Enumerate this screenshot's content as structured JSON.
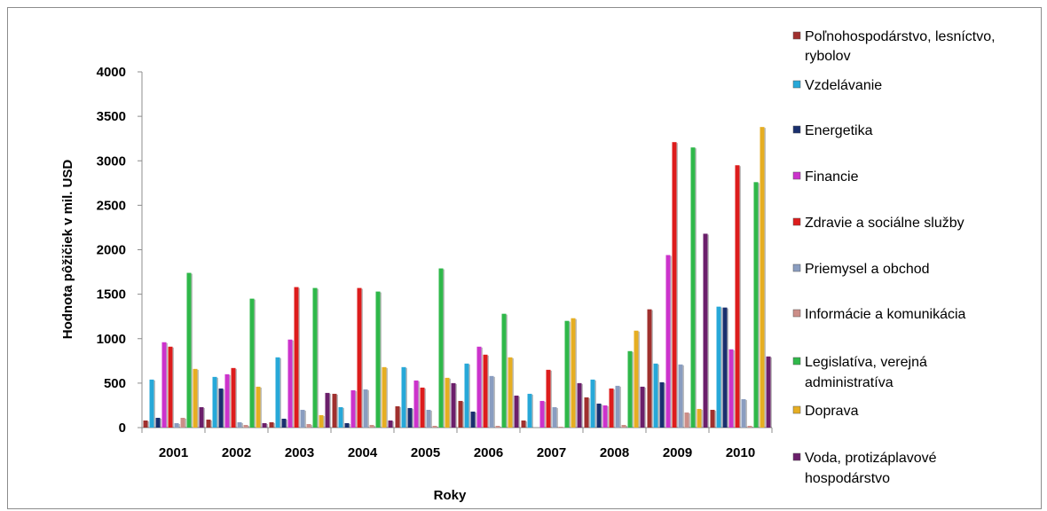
{
  "chart_data": {
    "type": "bar",
    "title": "",
    "xlabel": "Roky",
    "ylabel": "Hodnota pôžičiek v mil. USD",
    "ylim": [
      0,
      4000
    ],
    "yticks": [
      "0",
      "500",
      "1000",
      "1500",
      "2000",
      "2500",
      "3000",
      "3500",
      "4000"
    ],
    "grid": false,
    "legend_position": "right",
    "categories": [
      "2001",
      "2002",
      "2003",
      "2004",
      "2005",
      "2006",
      "2007",
      "2008",
      "2009",
      "2010"
    ],
    "series": [
      {
        "name": "Poľnohospodárstvo, lesníctvo, rybolov",
        "color": "#a0302e",
        "values": [
          80,
          90,
          60,
          380,
          240,
          300,
          80,
          340,
          1330,
          200
        ]
      },
      {
        "name": "Vzdelávanie",
        "color": "#27a8d8",
        "values": [
          540,
          570,
          790,
          230,
          680,
          720,
          380,
          540,
          720,
          1360
        ]
      },
      {
        "name": "Energetika",
        "color": "#1a2f6e",
        "values": [
          110,
          440,
          100,
          50,
          220,
          180,
          0,
          270,
          510,
          1350
        ]
      },
      {
        "name": "Financie",
        "color": "#cc33cc",
        "values": [
          960,
          600,
          990,
          420,
          530,
          910,
          300,
          250,
          1940,
          880
        ]
      },
      {
        "name": "Zdravie a sociálne služby",
        "color": "#dd1c1c",
        "values": [
          910,
          670,
          1580,
          1570,
          450,
          820,
          650,
          440,
          3210,
          2950
        ]
      },
      {
        "name": "Priemysel a obchod",
        "color": "#8a9dc0",
        "values": [
          50,
          60,
          200,
          430,
          200,
          580,
          230,
          470,
          710,
          320
        ]
      },
      {
        "name": "Informácie a komunikácia",
        "color": "#cc8e88",
        "values": [
          110,
          30,
          40,
          30,
          20,
          20,
          10,
          30,
          170,
          20
        ]
      },
      {
        "name": "Legislatíva, verejná administratíva",
        "color": "#2fb84a",
        "values": [
          1740,
          1450,
          1570,
          1530,
          1790,
          1280,
          1200,
          860,
          3150,
          2760
        ]
      },
      {
        "name": "Doprava",
        "color": "#e6ae22",
        "values": [
          660,
          460,
          140,
          680,
          560,
          790,
          1230,
          1090,
          210,
          3380
        ]
      },
      {
        "name": "Voda, protizáplavové hospodárstvo",
        "color": "#6b1f6b",
        "values": [
          230,
          50,
          390,
          80,
          500,
          360,
          500,
          460,
          2180,
          800
        ]
      }
    ]
  }
}
